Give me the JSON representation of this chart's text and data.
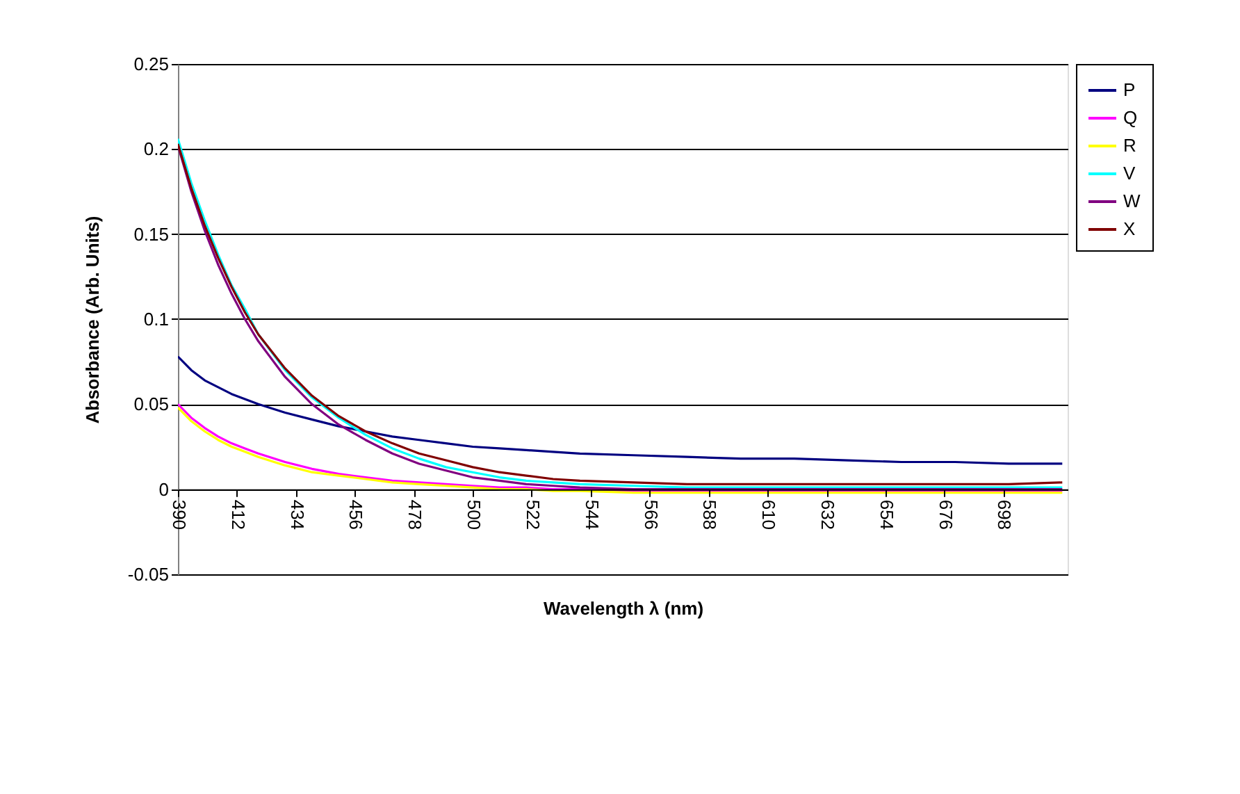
{
  "chart_data": {
    "type": "line",
    "xlabel": "Wavelength λ (nm)",
    "ylabel": "Absorbance (Arb. Units)",
    "x": [
      390,
      395,
      400,
      405,
      410,
      415,
      420,
      430,
      440,
      450,
      460,
      470,
      480,
      490,
      500,
      510,
      520,
      530,
      540,
      560,
      580,
      600,
      620,
      640,
      660,
      680,
      700,
      720
    ],
    "xlim": [
      390,
      722
    ],
    "xticks": [
      390,
      412,
      434,
      456,
      478,
      500,
      522,
      544,
      566,
      588,
      610,
      632,
      654,
      676,
      698
    ],
    "ylim": [
      -0.05,
      0.25
    ],
    "yticks": [
      -0.05,
      0,
      0.05,
      0.1,
      0.15,
      0.2,
      0.25
    ],
    "grid": "y",
    "legend": "right",
    "marker": "none",
    "line_style": "solid",
    "series": [
      {
        "name": "P",
        "color": "#000080",
        "values": [
          0.078,
          0.07,
          0.064,
          0.06,
          0.056,
          0.053,
          0.05,
          0.045,
          0.041,
          0.037,
          0.034,
          0.031,
          0.029,
          0.027,
          0.025,
          0.024,
          0.023,
          0.022,
          0.021,
          0.02,
          0.019,
          0.018,
          0.018,
          0.017,
          0.016,
          0.016,
          0.015,
          0.015
        ]
      },
      {
        "name": "Q",
        "color": "#ff00ff",
        "values": [
          0.05,
          0.042,
          0.036,
          0.031,
          0.027,
          0.024,
          0.021,
          0.016,
          0.012,
          0.009,
          0.007,
          0.005,
          0.004,
          0.003,
          0.002,
          0.001,
          0.001,
          0,
          0,
          -0.001,
          -0.001,
          -0.001,
          -0.001,
          -0.001,
          -0.001,
          -0.001,
          -0.001,
          -0.001
        ]
      },
      {
        "name": "R",
        "color": "#ffff00",
        "values": [
          0.048,
          0.04,
          0.034,
          0.029,
          0.025,
          0.022,
          0.019,
          0.014,
          0.01,
          0.008,
          0.006,
          0.004,
          0.003,
          0.002,
          0.001,
          0,
          0,
          -0.001,
          -0.001,
          -0.002,
          -0.002,
          -0.002,
          -0.002,
          -0.002,
          -0.002,
          -0.002,
          -0.002,
          -0.002
        ]
      },
      {
        "name": "V",
        "color": "#00ffff",
        "values": [
          0.206,
          0.18,
          0.158,
          0.138,
          0.12,
          0.106,
          0.091,
          0.07,
          0.054,
          0.042,
          0.032,
          0.024,
          0.018,
          0.013,
          0.01,
          0.007,
          0.005,
          0.004,
          0.003,
          0.002,
          0.001,
          0.001,
          0.001,
          0.001,
          0.001,
          0.001,
          0.001,
          0.001
        ]
      },
      {
        "name": "W",
        "color": "#800080",
        "values": [
          0.202,
          0.175,
          0.152,
          0.132,
          0.115,
          0.1,
          0.087,
          0.066,
          0.05,
          0.038,
          0.029,
          0.021,
          0.015,
          0.011,
          0.007,
          0.005,
          0.003,
          0.002,
          0.001,
          0,
          0,
          0,
          0,
          0,
          0,
          0,
          0,
          0
        ]
      },
      {
        "name": "X",
        "color": "#800000",
        "values": [
          0.203,
          0.177,
          0.155,
          0.136,
          0.119,
          0.104,
          0.091,
          0.071,
          0.055,
          0.043,
          0.034,
          0.027,
          0.021,
          0.017,
          0.013,
          0.01,
          0.008,
          0.006,
          0.005,
          0.004,
          0.003,
          0.003,
          0.003,
          0.003,
          0.003,
          0.003,
          0.003,
          0.004
        ]
      }
    ]
  }
}
